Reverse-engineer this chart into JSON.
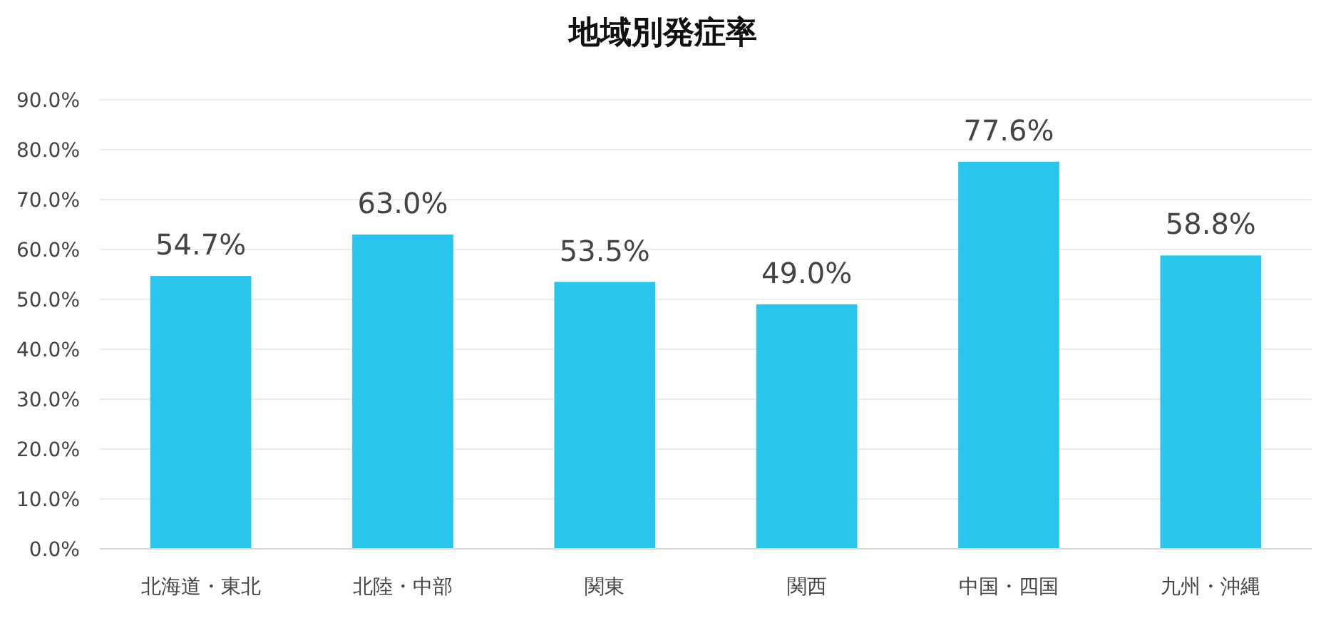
{
  "chart_data": {
    "type": "bar",
    "title": "地域別発症率",
    "categories": [
      "北海道・東北",
      "北陸・中部",
      "関東",
      "関西",
      "中国・四国",
      "九州・沖縄"
    ],
    "values": [
      54.7,
      63.0,
      53.5,
      49.0,
      77.6,
      58.8
    ],
    "value_labels": [
      "54.7%",
      "63.0%",
      "53.5%",
      "49.0%",
      "77.6%",
      "58.8%"
    ],
    "color": "#29c5ec",
    "ylim": [
      0,
      90
    ],
    "yticks": [
      {
        "value": 0,
        "label": "0.0%"
      },
      {
        "value": 10,
        "label": "10.0%"
      },
      {
        "value": 20,
        "label": "20.0%"
      },
      {
        "value": 30,
        "label": "30.0%"
      },
      {
        "value": 40,
        "label": "40.0%"
      },
      {
        "value": 50,
        "label": "50.0%"
      },
      {
        "value": 60,
        "label": "60.0%"
      },
      {
        "value": 70,
        "label": "70.0%"
      },
      {
        "value": 80,
        "label": "80.0%"
      },
      {
        "value": 90,
        "label": "90.0%"
      }
    ],
    "grid": "y"
  }
}
